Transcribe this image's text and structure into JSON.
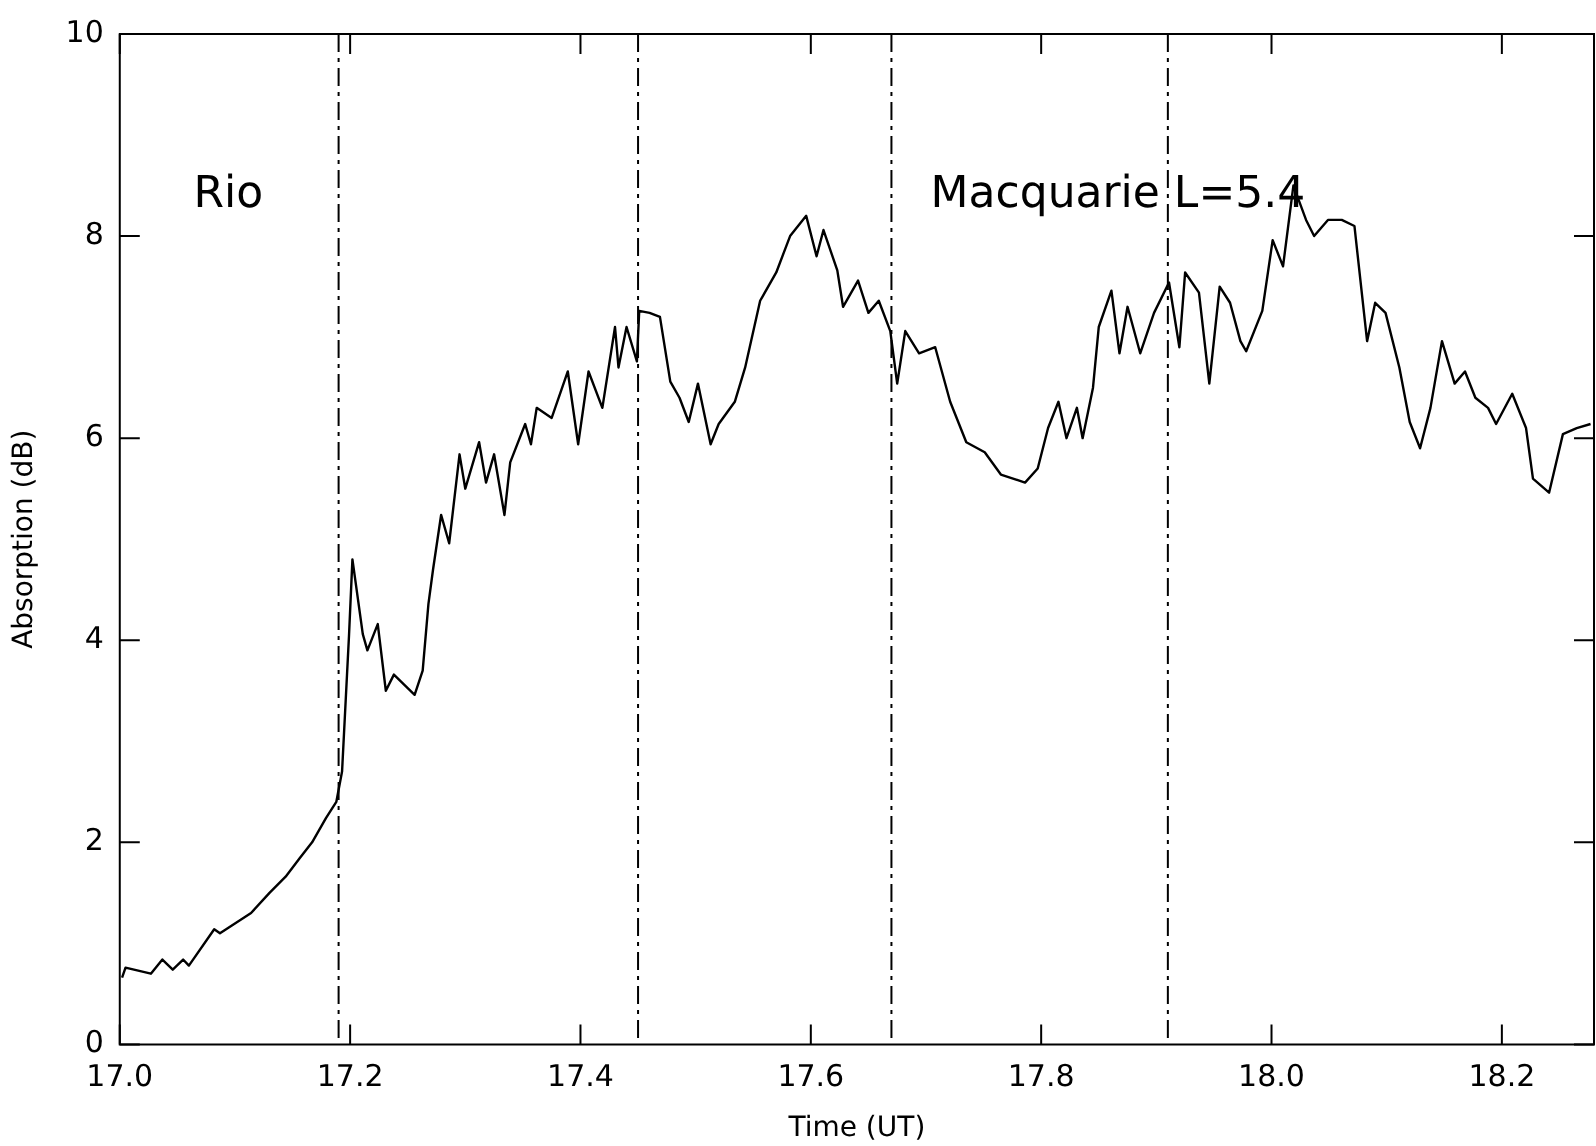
{
  "chart_data": {
    "type": "line",
    "xlabel": "Time (UT)",
    "ylabel": "Absorption (dB)",
    "annotations": [
      "Rio",
      "Macquarie L=5.4"
    ],
    "xlim": [
      17.0,
      18.28
    ],
    "ylim": [
      0,
      10
    ],
    "xticks": [
      {
        "value": 17.0,
        "label": "17.0"
      },
      {
        "value": 17.2,
        "label": "17.2"
      },
      {
        "value": 17.4,
        "label": "17.4"
      },
      {
        "value": 17.6,
        "label": "17.6"
      },
      {
        "value": 17.8,
        "label": "17.8"
      },
      {
        "value": 18.0,
        "label": "18.0"
      },
      {
        "value": 18.2,
        "label": "18.2"
      }
    ],
    "yticks": [
      0,
      2,
      4,
      6,
      8,
      10
    ],
    "ref_lines": [
      {
        "axis": "x",
        "value": 17.19,
        "line_style": "dashed"
      },
      {
        "axis": "x",
        "value": 17.45,
        "line_style": "dashed"
      },
      {
        "axis": "x",
        "value": 17.67,
        "line_style": "dashed"
      },
      {
        "axis": "x",
        "value": 17.91,
        "line_style": "dashed"
      }
    ],
    "series": [
      {
        "color": "#000000",
        "x": [
          17.002,
          17.005,
          17.027,
          17.037,
          17.046,
          17.055,
          17.06,
          17.082,
          17.087,
          17.114,
          17.13,
          17.144,
          17.156,
          17.167,
          17.179,
          17.188,
          17.193,
          17.199,
          17.202,
          17.211,
          17.215,
          17.224,
          17.231,
          17.238,
          17.256,
          17.263,
          17.268,
          17.272,
          17.279,
          17.286,
          17.295,
          17.3,
          17.312,
          17.318,
          17.325,
          17.334,
          17.339,
          17.352,
          17.357,
          17.362,
          17.375,
          17.389,
          17.398,
          17.407,
          17.419,
          17.43,
          17.433,
          17.44,
          17.449,
          17.451,
          17.46,
          17.469,
          17.478,
          17.486,
          17.494,
          17.502,
          17.513,
          17.52,
          17.534,
          17.543,
          17.556,
          17.57,
          17.582,
          17.596,
          17.605,
          17.611,
          17.623,
          17.628,
          17.641,
          17.65,
          17.659,
          17.669,
          17.675,
          17.682,
          17.694,
          17.708,
          17.721,
          17.735,
          17.751,
          17.765,
          17.786,
          17.797,
          17.806,
          17.815,
          17.822,
          17.831,
          17.836,
          17.845,
          17.85,
          17.861,
          17.868,
          17.875,
          17.886,
          17.898,
          17.911,
          17.92,
          17.925,
          17.937,
          17.946,
          17.955,
          17.964,
          17.973,
          17.978,
          17.992,
          18.001,
          18.01,
          18.019,
          18.03,
          18.037,
          18.049,
          18.061,
          18.072,
          18.083,
          18.09,
          18.099,
          18.111,
          18.12,
          18.129,
          18.138,
          18.148,
          18.159,
          18.168,
          18.177,
          18.188,
          18.195,
          18.209,
          18.221,
          18.227,
          18.241,
          18.253,
          18.265,
          18.277
        ],
        "values": [
          0.66,
          0.76,
          0.7,
          0.84,
          0.74,
          0.84,
          0.78,
          1.14,
          1.1,
          1.3,
          1.5,
          1.66,
          1.84,
          2.0,
          2.24,
          2.4,
          2.7,
          4.04,
          4.8,
          4.06,
          3.9,
          4.16,
          3.5,
          3.66,
          3.46,
          3.7,
          4.36,
          4.7,
          5.24,
          4.96,
          5.84,
          5.5,
          5.96,
          5.56,
          5.84,
          5.24,
          5.76,
          6.14,
          5.94,
          6.3,
          6.2,
          6.66,
          5.94,
          6.66,
          6.3,
          7.1,
          6.7,
          7.1,
          6.76,
          7.26,
          7.24,
          7.2,
          6.56,
          6.4,
          6.16,
          6.54,
          5.94,
          6.14,
          6.36,
          6.7,
          7.36,
          7.64,
          8.0,
          8.2,
          7.8,
          8.06,
          7.66,
          7.3,
          7.56,
          7.24,
          7.36,
          7.06,
          6.54,
          7.06,
          6.84,
          6.9,
          6.36,
          5.96,
          5.86,
          5.64,
          5.56,
          5.7,
          6.1,
          6.36,
          6.0,
          6.3,
          6.0,
          6.5,
          7.1,
          7.46,
          6.84,
          7.3,
          6.84,
          7.24,
          7.54,
          6.9,
          7.64,
          7.44,
          6.54,
          7.5,
          7.34,
          6.96,
          6.86,
          7.26,
          7.96,
          7.7,
          8.5,
          8.16,
          8.0,
          8.16,
          8.16,
          8.1,
          6.96,
          7.34,
          7.24,
          6.7,
          6.16,
          5.9,
          6.3,
          6.96,
          6.54,
          6.66,
          6.4,
          6.3,
          6.14,
          6.44,
          6.1,
          5.6,
          5.46,
          6.04,
          6.1,
          6.14
        ]
      }
    ]
  }
}
